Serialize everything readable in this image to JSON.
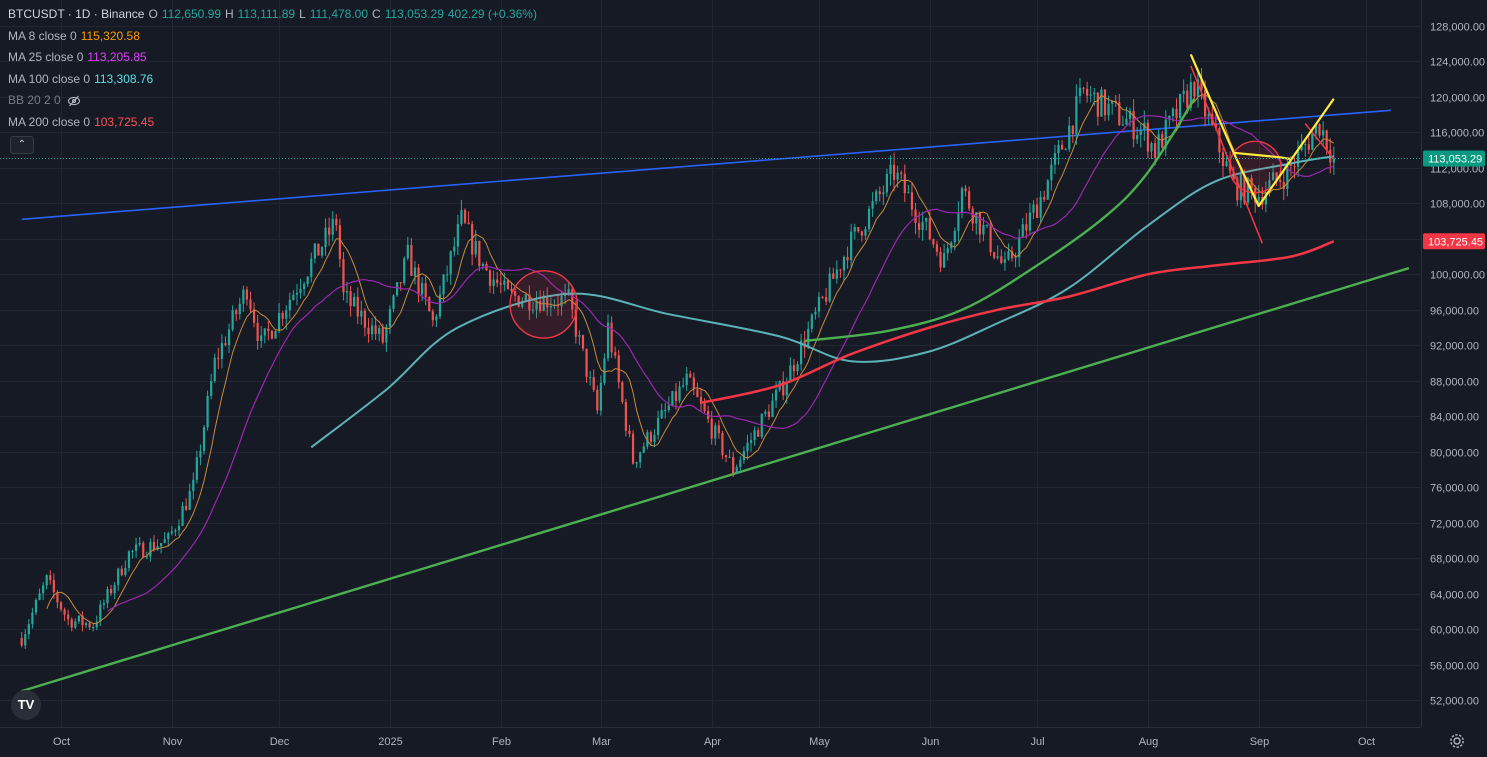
{
  "header": {
    "symbol": "BTCUSDT · 1D · Binance",
    "open_label": "O",
    "open": "112,650.99",
    "high_label": "H",
    "high": "113,111.89",
    "low_label": "L",
    "low": "111,478.00",
    "close_label": "C",
    "close": "113,053.29",
    "change": "402.29 (+0.36%)"
  },
  "indicators": [
    {
      "label": "MA 8 close 0",
      "value": "115,320.58",
      "color": "#FF9800"
    },
    {
      "label": "MA 25 close 0",
      "value": "113,205.85",
      "color": "#E040FB"
    },
    {
      "label": "MA 100 close 0",
      "value": "113,308.76",
      "color": "#5CE1E6"
    },
    {
      "label": "BB 20 2 0",
      "value": "",
      "color": "#787B86",
      "hidden": true,
      "icon": "eye-crossed-icon"
    },
    {
      "label": "MA 200 close 0",
      "value": "103,725.45",
      "color": "#FF5252"
    }
  ],
  "controls": {
    "collapse": "⌃",
    "logo": "TV",
    "settings_icon": "gear-icon"
  },
  "colors": {
    "background": "#161A25",
    "grid": "#232632",
    "up": "#26A69A",
    "down": "#EF5350",
    "ma200": "#F23645",
    "ma100": "#5BB3B8",
    "ma25": "#9C27B0",
    "ma8": "#C78A3A",
    "trend_blue": "#2962FF",
    "trend_green": "#4CAF50",
    "pattern_yellow": "#FFEB3B",
    "circle": "#F23645"
  },
  "chart_data": {
    "type": "candlestick",
    "y_axis": {
      "ticks": [
        "128,000.00",
        "124,000.00",
        "120,000.00",
        "116,000.00",
        "112,000.00",
        "108,000.00",
        "104,000.00",
        "100,000.00",
        "96,000.00",
        "92,000.00",
        "88,000.00",
        "84,000.00",
        "80,000.00",
        "76,000.00",
        "72,000.00",
        "68,000.00",
        "64,000.00",
        "60,000.00",
        "56,000.00",
        "52,000.00"
      ],
      "range": [
        49000,
        130000
      ],
      "price_label": "113,053.29",
      "ma200_label": "103,725.45"
    },
    "x_axis": {
      "ticks": [
        "Oct",
        "Nov",
        "Dec",
        "2025",
        "Feb",
        "Mar",
        "Apr",
        "May",
        "Jun",
        "Jul",
        "Aug",
        "Sep",
        "Oct"
      ]
    },
    "last_price": 113053.29,
    "candle_anchors": [
      {
        "date": "2024-09-20",
        "close": 59000
      },
      {
        "date": "2024-09-27",
        "close": 65500
      },
      {
        "date": "2024-10-03",
        "close": 61000
      },
      {
        "date": "2024-10-10",
        "close": 60500
      },
      {
        "date": "2024-10-20",
        "close": 68500
      },
      {
        "date": "2024-10-31",
        "close": 70000
      },
      {
        "date": "2024-11-07",
        "close": 76000
      },
      {
        "date": "2024-11-13",
        "close": 90000
      },
      {
        "date": "2024-11-22",
        "close": 98500
      },
      {
        "date": "2024-11-26",
        "close": 92000
      },
      {
        "date": "2024-12-05",
        "close": 98000
      },
      {
        "date": "2024-12-17",
        "close": 106000
      },
      {
        "date": "2024-12-19",
        "close": 97500
      },
      {
        "date": "2024-12-30",
        "close": 92500
      },
      {
        "date": "2025-01-06",
        "close": 102000
      },
      {
        "date": "2025-01-13",
        "close": 94500
      },
      {
        "date": "2025-01-21",
        "close": 106000
      },
      {
        "date": "2025-01-27",
        "close": 101000
      },
      {
        "date": "2025-02-03",
        "close": 97500
      },
      {
        "date": "2025-02-20",
        "close": 97000
      },
      {
        "date": "2025-02-28",
        "close": 84500
      },
      {
        "date": "2025-03-03",
        "close": 94000
      },
      {
        "date": "2025-03-10",
        "close": 79000
      },
      {
        "date": "2025-03-25",
        "close": 88000
      },
      {
        "date": "2025-04-07",
        "close": 78000
      },
      {
        "date": "2025-04-21",
        "close": 87500
      },
      {
        "date": "2025-05-09",
        "close": 103000
      },
      {
        "date": "2025-05-22",
        "close": 111500
      },
      {
        "date": "2025-06-05",
        "close": 101500
      },
      {
        "date": "2025-06-10",
        "close": 109500
      },
      {
        "date": "2025-06-22",
        "close": 100500
      },
      {
        "date": "2025-07-03",
        "close": 109500
      },
      {
        "date": "2025-07-14",
        "close": 120500
      },
      {
        "date": "2025-07-31",
        "close": 116000
      },
      {
        "date": "2025-08-03",
        "close": 114000
      },
      {
        "date": "2025-08-14",
        "close": 121500
      },
      {
        "date": "2025-08-25",
        "close": 110000
      },
      {
        "date": "2025-09-01",
        "close": 109000
      },
      {
        "date": "2025-09-09",
        "close": 111500
      },
      {
        "date": "2025-09-18",
        "close": 117000
      },
      {
        "date": "2025-09-22",
        "close": 113053.29
      }
    ],
    "moving_averages": {
      "ma200": [
        [
          "2025-03-29",
          85500
        ],
        [
          "2025-04-20",
          87500
        ],
        [
          "2025-05-10",
          91000
        ],
        [
          "2025-06-01",
          94000
        ],
        [
          "2025-06-20",
          96000
        ],
        [
          "2025-07-10",
          97500
        ],
        [
          "2025-08-01",
          100000
        ],
        [
          "2025-08-20",
          101000
        ],
        [
          "2025-09-10",
          102000
        ],
        [
          "2025-09-22",
          103725.45
        ]
      ],
      "ma100": [
        [
          "2024-12-10",
          80500
        ],
        [
          "2024-12-31",
          87000
        ],
        [
          "2025-01-20",
          94000
        ],
        [
          "2025-02-20",
          97800
        ],
        [
          "2025-03-20",
          95500
        ],
        [
          "2025-04-20",
          93000
        ],
        [
          "2025-05-10",
          90200
        ],
        [
          "2025-05-31",
          91200
        ],
        [
          "2025-06-20",
          94500
        ],
        [
          "2025-07-10",
          98500
        ],
        [
          "2025-08-01",
          105500
        ],
        [
          "2025-08-20",
          110500
        ],
        [
          "2025-09-10",
          112500
        ],
        [
          "2025-09-22",
          113308.76
        ]
      ]
    },
    "drawings": {
      "blue_trendline": [
        [
          "2024-09-20",
          106200
        ],
        [
          "2025-10-08",
          118500
        ]
      ],
      "green_trendline": [
        [
          "2024-09-20",
          53000
        ],
        [
          "2025-10-13",
          100700
        ]
      ],
      "green_curve": [
        [
          "2025-04-27",
          92500
        ],
        [
          "2025-05-20",
          93600
        ],
        [
          "2025-06-10",
          96000
        ],
        [
          "2025-07-01",
          101000
        ],
        [
          "2025-07-20",
          106500
        ],
        [
          "2025-08-01",
          111500
        ],
        [
          "2025-08-14",
          119800
        ]
      ],
      "circles": [
        {
          "center": [
            "2025-02-13",
            96600
          ],
          "radius_days": 9.4
        },
        {
          "center": [
            "2025-08-31",
            112100
          ],
          "radius_days": 7.2
        }
      ],
      "yellow_pattern": [
        [
          [
            "2025-08-13",
            124800
          ],
          [
            "2025-08-25",
            113700
          ],
          [
            "2025-09-07",
            113200
          ],
          [
            "2025-09-10",
            113000
          ]
        ],
        [
          [
            "2025-08-25",
            113700
          ],
          [
            "2025-09-01",
            107700
          ],
          [
            "2025-09-22",
            119800
          ]
        ]
      ],
      "red_down_line": [
        [
          "2025-08-13",
          123500
        ],
        [
          "2025-09-02",
          103500
        ]
      ],
      "red_short_line": [
        [
          "2025-09-14",
          117000
        ],
        [
          "2025-09-22",
          113000
        ]
      ]
    }
  }
}
